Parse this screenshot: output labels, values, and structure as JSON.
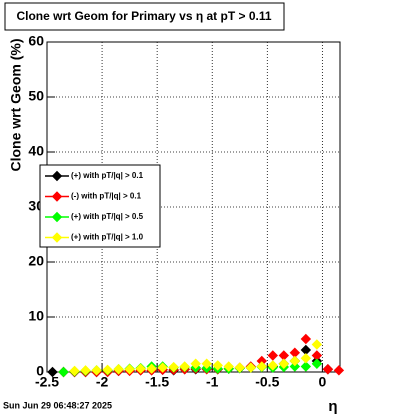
{
  "chart_data": {
    "type": "scatter",
    "title": "Clone wrt Geom for Primary vs    η at pT > 0.11",
    "y_label": "Clone wrt Geom (%)",
    "x_label": "η",
    "timestamp": "Sun Jun 29 06:48:27 2025",
    "xlim": [
      -2.5,
      0.16
    ],
    "ylim": [
      0,
      60
    ],
    "xticks": [
      -2.5,
      -2,
      -1.5,
      -1,
      -0.5,
      0
    ],
    "yticks": [
      0,
      10,
      20,
      30,
      40,
      50,
      60
    ],
    "grid": true,
    "legend": "upper-left",
    "x": [
      -2.45,
      -2.35,
      -2.25,
      -2.15,
      -2.05,
      -1.95,
      -1.85,
      -1.75,
      -1.65,
      -1.55,
      -1.45,
      -1.35,
      -1.25,
      -1.15,
      -1.05,
      -0.95,
      -0.85,
      -0.75,
      -0.65,
      -0.55,
      -0.45,
      -0.35,
      -0.25,
      -0.15,
      -0.05,
      0.05,
      0.15
    ],
    "series": [
      {
        "name": "(+) with pT/|q| > 0.1",
        "color": "#000000",
        "values": [
          0,
          0,
          0,
          0,
          0,
          0.2,
          0.2,
          0.3,
          0.3,
          0.3,
          0.4,
          0.3,
          0.5,
          0.5,
          0.6,
          0.5,
          0.6,
          0.7,
          0.8,
          1,
          1,
          1.5,
          2,
          4,
          2,
          0.5,
          null
        ]
      },
      {
        "name": "(-) with pT/|q| > 0.1",
        "color": "#ff0000",
        "values": [
          null,
          0,
          0,
          0,
          0,
          0,
          0.2,
          0.2,
          0.3,
          0.3,
          0.4,
          0.4,
          0.5,
          0.6,
          0.5,
          0.5,
          0.6,
          0.8,
          1,
          2,
          3,
          3,
          3.5,
          6,
          3,
          0.5,
          0.3
        ]
      },
      {
        "name": "(+) with pT/|q| > 0.5",
        "color": "#00ff00",
        "values": [
          null,
          0,
          0.1,
          0.2,
          0.3,
          0.3,
          0.5,
          0.6,
          0.7,
          1,
          1,
          0.8,
          0.9,
          0.8,
          0.7,
          0.6,
          0.6,
          0.7,
          0.8,
          0.9,
          0.8,
          0.9,
          1,
          1,
          1.5,
          null,
          null
        ]
      },
      {
        "name": "(+) with pT/|q| > 1.0",
        "color": "#ffff00",
        "values": [
          null,
          null,
          0.2,
          0.3,
          0.3,
          0.4,
          0.5,
          0.5,
          0.6,
          0.6,
          0.8,
          0.9,
          1,
          1.5,
          1.5,
          1.2,
          1,
          0.8,
          0.8,
          1,
          1.2,
          1.5,
          2,
          2.5,
          5,
          null,
          null
        ]
      }
    ]
  }
}
